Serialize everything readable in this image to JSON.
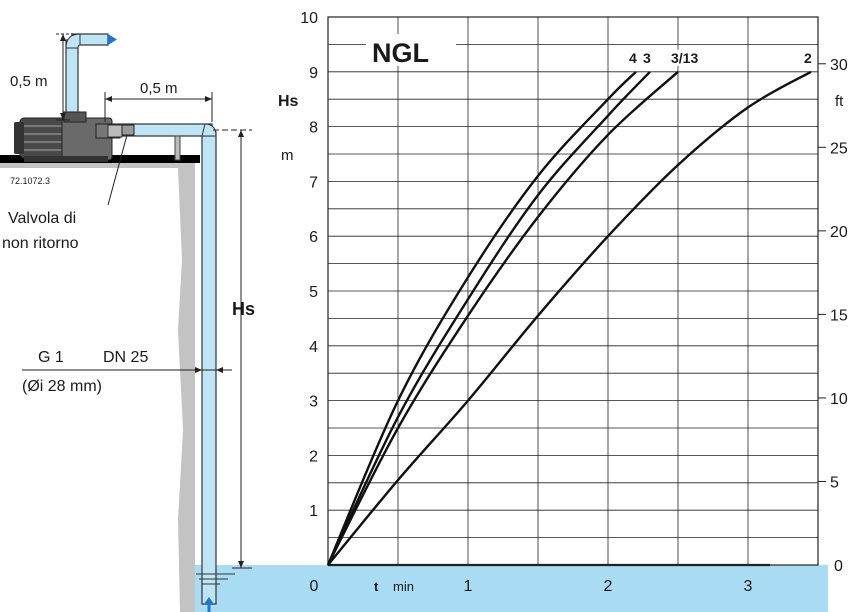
{
  "diagram": {
    "vertical_offset": "0,5 m",
    "horizontal_offset": "0,5 m",
    "code": "72.1072.3",
    "valve_line1": "Valvola di",
    "valve_line2": "non ritorno",
    "pipe_thread": "G 1",
    "pipe_dn": "DN 25",
    "pipe_inner": "(Øi 28 mm)",
    "hs_label": "Hs"
  },
  "colors": {
    "water": "#a9dcf2",
    "pipe": "#bfe4f5",
    "arrow": "#1f77c8",
    "ground": "#c3c3c3",
    "grid": "#222222",
    "curve": "#111111"
  },
  "chart_data": {
    "type": "line",
    "title": "NGL",
    "xlabel": "t",
    "xunit": "min",
    "ylabel": "Hs",
    "yunit": "m",
    "y2label": "ft",
    "xlim": [
      0,
      3.5
    ],
    "ylim": [
      0,
      10
    ],
    "y2lim": [
      0,
      32.8
    ],
    "x_ticks": [
      0,
      1,
      2,
      3
    ],
    "y_ticks": [
      1,
      2,
      3,
      4,
      5,
      6,
      7,
      8,
      9,
      10
    ],
    "y2_ticks": [
      0,
      5,
      10,
      15,
      20,
      25,
      30
    ],
    "grid": true,
    "series": [
      {
        "name": "4",
        "x": [
          0,
          0.5,
          1.0,
          1.5,
          2.0,
          2.2
        ],
        "y": [
          0,
          3.0,
          5.25,
          7.1,
          8.5,
          9.0
        ]
      },
      {
        "name": "3",
        "x": [
          0,
          0.5,
          1.0,
          1.5,
          2.0,
          2.3
        ],
        "y": [
          0,
          2.7,
          4.85,
          6.75,
          8.2,
          9.0
        ]
      },
      {
        "name": "3/13",
        "x": [
          0,
          0.5,
          1.0,
          1.5,
          2.0,
          2.5
        ],
        "y": [
          0,
          2.5,
          4.55,
          6.35,
          7.85,
          9.0
        ]
      },
      {
        "name": "2",
        "x": [
          0,
          0.5,
          1.0,
          1.5,
          2.0,
          2.5,
          3.0,
          3.45
        ],
        "y": [
          0,
          1.55,
          3.0,
          4.55,
          6.0,
          7.3,
          8.35,
          9.0
        ]
      }
    ]
  }
}
